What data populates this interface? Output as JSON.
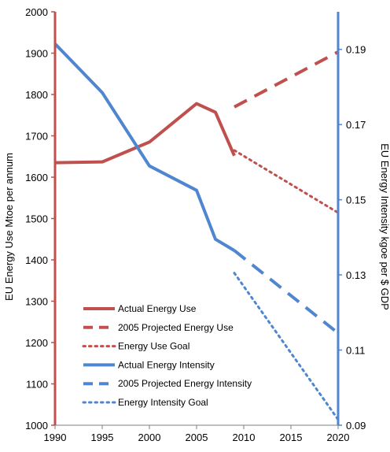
{
  "chart_data": {
    "type": "line",
    "xlabel": "",
    "ylabel_left": "EU Energy Use Mtoe per annum",
    "ylabel_right": "EU Energy Intensity kgoe per $ GDP",
    "xlim": [
      1990,
      2020
    ],
    "ylim_left": [
      1000,
      2000
    ],
    "ylim_right": [
      0.09,
      0.2
    ],
    "x_ticks": [
      "1990",
      "1995",
      "2000",
      "2005",
      "2010",
      "2015",
      "2020"
    ],
    "y_ticks_left": [
      "1000",
      "1100",
      "1200",
      "1300",
      "1400",
      "1500",
      "1600",
      "1700",
      "1800",
      "1900",
      "2000"
    ],
    "y_ticks_right": [
      "0.09",
      "0.11",
      "0.13",
      "0.15",
      "0.17",
      "0.19"
    ],
    "grid": false,
    "legend_position": "bottom-left",
    "colors": {
      "energy_use": "#c0504d",
      "energy_intensity": "#4f86cf"
    },
    "series": [
      {
        "name": "Actual Energy Use",
        "axis": "left",
        "style": "solid",
        "color": "#c0504d",
        "x": [
          1990,
          1995,
          2000,
          2005,
          2007,
          2009
        ],
        "y": [
          1635,
          1637,
          1685,
          1778,
          1757,
          1652
        ]
      },
      {
        "name": "2005 Projected Energy Use",
        "axis": "left",
        "style": "dashed",
        "color": "#c0504d",
        "x": [
          2009,
          2020
        ],
        "y": [
          1770,
          1903
        ]
      },
      {
        "name": "Energy Use Goal",
        "axis": "left",
        "style": "dotted",
        "color": "#c0504d",
        "x": [
          2009,
          2020
        ],
        "y": [
          1665,
          1514
        ]
      },
      {
        "name": "Actual Energy Intensity",
        "axis": "right",
        "style": "solid",
        "color": "#4f86cf",
        "x": [
          1990,
          1995,
          2000,
          2005,
          2007,
          2009
        ],
        "y": [
          0.1915,
          0.1785,
          0.159,
          0.1525,
          0.1395,
          0.1365
        ]
      },
      {
        "name": "2005 Projected Energy Intensity",
        "axis": "right",
        "style": "dashed",
        "color": "#4f86cf",
        "x": [
          2009,
          2020
        ],
        "y": [
          0.1365,
          0.1145
        ]
      },
      {
        "name": "Energy Intensity Goal",
        "axis": "right",
        "style": "dotted",
        "color": "#4f86cf",
        "x": [
          2009,
          2020
        ],
        "y": [
          0.1305,
          0.0915
        ]
      }
    ]
  }
}
